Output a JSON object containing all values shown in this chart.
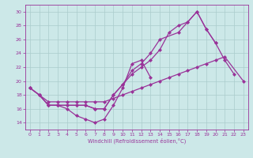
{
  "background_color": "#cce8e8",
  "grid_color": "#aacccc",
  "line_color": "#993399",
  "marker": "D",
  "markersize": 2.0,
  "linewidth": 0.9,
  "xlabel": "Windchill (Refroidissement éolien,°C)",
  "xlim": [
    -0.5,
    23.5
  ],
  "ylim": [
    13,
    31
  ],
  "yticks": [
    14,
    16,
    18,
    20,
    22,
    24,
    26,
    28,
    30
  ],
  "xticks": [
    0,
    1,
    2,
    3,
    4,
    5,
    6,
    7,
    8,
    9,
    10,
    11,
    12,
    13,
    14,
    15,
    16,
    17,
    18,
    19,
    20,
    21,
    22,
    23
  ],
  "lines": [
    {
      "x": [
        0,
        1,
        2,
        3,
        4,
        5,
        6,
        7,
        8,
        9,
        10,
        11,
        12,
        13
      ],
      "y": [
        19,
        18,
        16.5,
        16.5,
        16,
        15,
        14.5,
        14,
        14.5,
        16.5,
        19.0,
        22.5,
        23,
        20.5
      ]
    },
    {
      "x": [
        0,
        1,
        2,
        3,
        4,
        5,
        6,
        7,
        8,
        9,
        10,
        11,
        12,
        13,
        14,
        15,
        16,
        17,
        18,
        19,
        20,
        21,
        22,
        23
      ],
      "y": [
        19,
        18,
        17,
        17,
        17,
        17,
        17,
        17,
        17,
        17.5,
        18,
        18.5,
        19,
        19.5,
        20,
        20.5,
        21,
        21.5,
        22,
        22.5,
        23,
        23.5,
        null,
        20
      ]
    },
    {
      "x": [
        0,
        1,
        2,
        3,
        4,
        5,
        6,
        7,
        8,
        9,
        10,
        11,
        12,
        13,
        14,
        15,
        16,
        17,
        18,
        19,
        20,
        21,
        22
      ],
      "y": [
        19,
        18,
        16.5,
        16.5,
        16.5,
        16.5,
        16.5,
        16,
        16,
        18,
        19.5,
        21,
        22,
        23,
        24.5,
        27,
        28,
        28.5,
        30,
        27.5,
        25.5,
        23,
        21
      ]
    },
    {
      "x": [
        1,
        2,
        3,
        4,
        5,
        6,
        7,
        8,
        9,
        10,
        11,
        12,
        13,
        14,
        15,
        16,
        17,
        18,
        19,
        20
      ],
      "y": [
        18,
        16.5,
        16.5,
        16.5,
        16.5,
        16.5,
        16,
        16,
        18,
        19.5,
        21.5,
        22.5,
        24,
        26,
        null,
        27,
        28.5,
        30,
        27.5,
        25.5
      ]
    }
  ]
}
